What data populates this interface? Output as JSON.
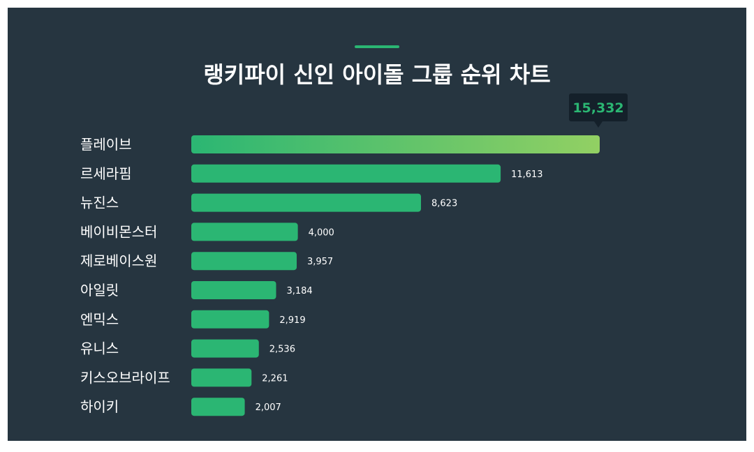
{
  "chart_data": {
    "type": "bar",
    "orientation": "horizontal",
    "title": "랭키파이 신인 아이돌 그룹 순위 차트",
    "categories": [
      "플레이브",
      "르세라핌",
      "뉴진스",
      "베이비몬스터",
      "제로베이스원",
      "아일릿",
      "엔믹스",
      "유니스",
      "키스오브라이프",
      "하이키"
    ],
    "values": [
      15332,
      11613,
      8623,
      4000,
      3957,
      3184,
      2919,
      2536,
      2261,
      2007
    ],
    "value_labels": [
      "15,332",
      "11,613",
      "8,623",
      "4,000",
      "3,957",
      "3,184",
      "2,919",
      "2,536",
      "2,261",
      "2,007"
    ],
    "xlim": [
      0,
      15332
    ],
    "grid": false,
    "legend": "none",
    "highlight_index": 0,
    "colors": {
      "background": "#263540",
      "bar": "#2bb673",
      "highlight_gradient_start": "#2bb673",
      "highlight_gradient_end": "#92d063",
      "callout_bg": "#14202a",
      "callout_text": "#2bb673",
      "accent": "#2bb673"
    }
  }
}
